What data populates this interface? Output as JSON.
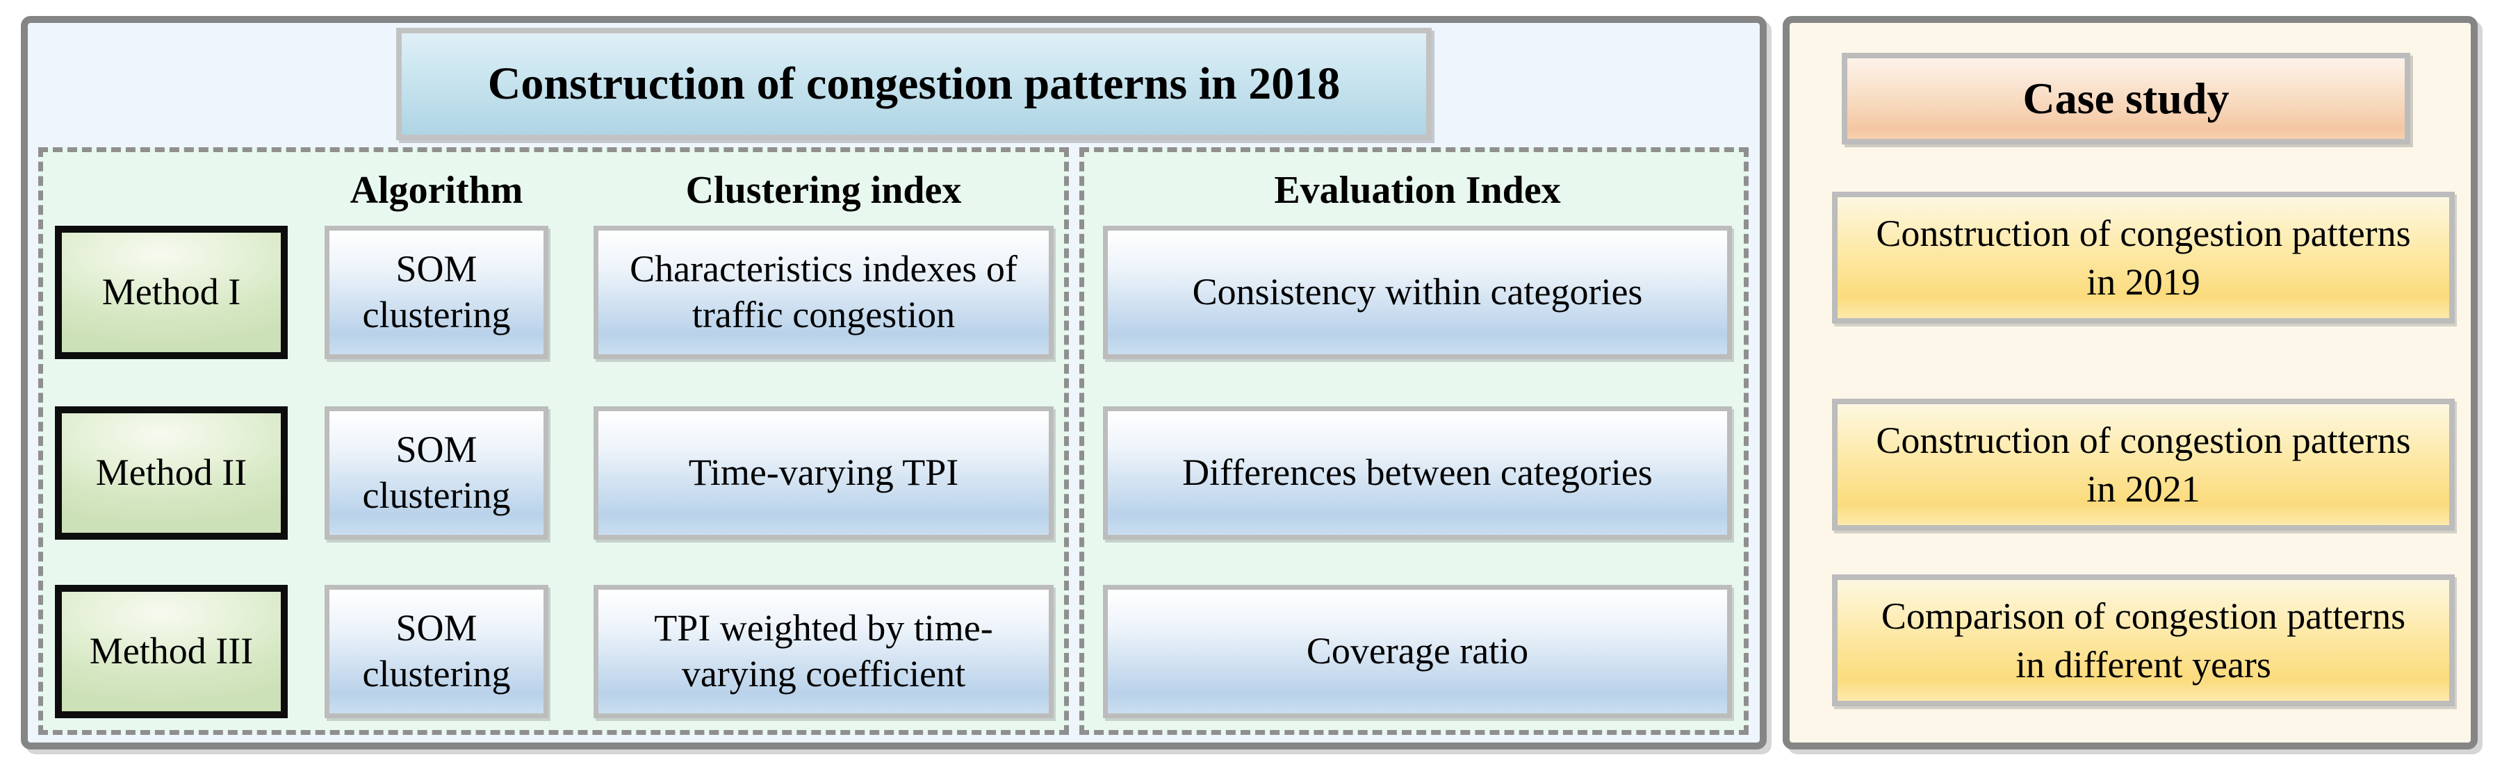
{
  "left_panel": {
    "title": "Construction of congestion patterns in 2018",
    "columns": {
      "algorithm": "Algorithm",
      "clustering": "Clustering index",
      "evaluation": "Evaluation Index"
    },
    "rows": [
      {
        "method": "Method I",
        "algorithm": "SOM clustering",
        "clustering": "Characteristics indexes of traffic congestion",
        "evaluation": "Consistency within categories"
      },
      {
        "method": "Method II",
        "algorithm": "SOM clustering",
        "clustering": "Time-varying TPI",
        "evaluation": "Differences between categories"
      },
      {
        "method": "Method III",
        "algorithm": "SOM clustering",
        "clustering": "TPI weighted by time-varying coefficient",
        "evaluation": "Coverage ratio"
      }
    ]
  },
  "right_panel": {
    "title": "Case study",
    "items": [
      "Construction of congestion patterns in 2019",
      "Construction of congestion patterns in 2021",
      "Comparison of congestion patterns in different years"
    ]
  },
  "colors": {
    "left_panel_bg": "#eef5fd",
    "dashed_area_bg": "#e8f8ef",
    "right_panel_bg": "#fcf7e9",
    "title_box_gradient_top": "#e0eff6",
    "title_box_gradient_bottom": "#afd4e4",
    "content_box_gradient_top": "#ffffff",
    "content_box_gradient_bottom": "#b9d2ea",
    "method_box_green": "#d5e7c2",
    "case_title_gradient_bottom": "#f4c7a2",
    "case_item_gradient_bottom": "#fbdb7d",
    "panel_border": "#858585",
    "box_border_silver": "#bcbcbc",
    "method_border": "#0d0d0d",
    "dashed_border": "#8f8f8f"
  }
}
